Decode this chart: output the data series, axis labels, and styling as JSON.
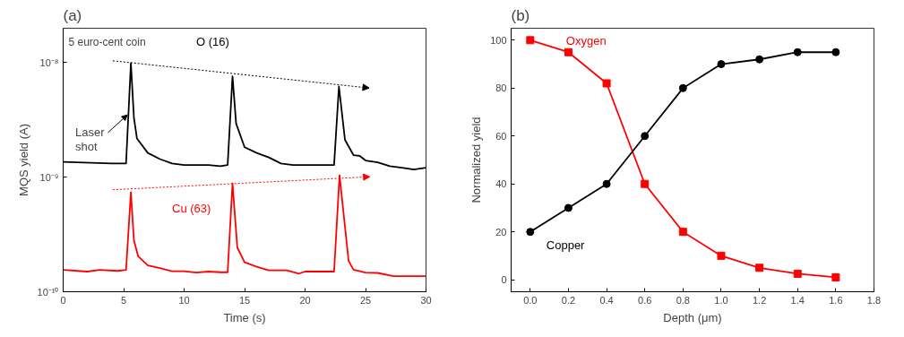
{
  "chart_data": [
    {
      "type": "line",
      "title": "(a)",
      "xlabel": "Time (s)",
      "ylabel": "MQS yield (A)",
      "log": "y",
      "xlim": [
        0,
        30
      ],
      "ylim": [
        1e-10,
        2e-08
      ],
      "xticks": [
        0,
        5,
        10,
        15,
        20,
        25,
        30
      ],
      "yticks": [
        {
          "value": 1e-10,
          "label": "10⁻¹⁰"
        },
        {
          "value": 1e-09,
          "label": "10⁻⁹"
        },
        {
          "value": 1e-08,
          "label": "10⁻⁸"
        }
      ],
      "grid": false,
      "marker": "none",
      "line_style": "solid",
      "annotations": [
        "5 euro-cent coin",
        {
          "text": "Laser shot",
          "x": 5.3,
          "y": 3.5e-09
        }
      ],
      "series": [
        {
          "name": "O (16)",
          "color": "#000000",
          "x": [
            0,
            4,
            5.2,
            5.6,
            5.85,
            6.1,
            7,
            8,
            9,
            10,
            12,
            13,
            13.6,
            14.0,
            14.3,
            15,
            16,
            17,
            18,
            19,
            21,
            22.4,
            22.8,
            23.3,
            24,
            24.5,
            25,
            26,
            27,
            28,
            29,
            30
          ],
          "values": [
            1.36e-09,
            1.32e-09,
            1.32e-09,
            9.9e-09,
            3.3e-09,
            2.18e-09,
            1.63e-09,
            1.44e-09,
            1.32e-09,
            1.28e-09,
            1.28e-09,
            1.25e-09,
            1.28e-09,
            7.6e-09,
            2.94e-09,
            1.83e-09,
            1.63e-09,
            1.49e-09,
            1.32e-09,
            1.28e-09,
            1.28e-09,
            1.28e-09,
            6.2e-09,
            2.12e-09,
            1.56e-09,
            1.54e-09,
            1.4e-09,
            1.35e-09,
            1.25e-09,
            1.21e-09,
            1.17e-09,
            1.21e-09
          ]
        },
        {
          "name": "Cu (63)",
          "color": "#ff0000",
          "x": [
            0,
            2,
            3,
            4.5,
            5.2,
            5.6,
            5.85,
            6.2,
            7,
            8,
            9,
            10,
            11,
            12,
            13,
            13.6,
            14.0,
            14.4,
            15,
            16,
            17,
            18.5,
            19.5,
            20,
            22.4,
            22.85,
            23.6,
            24,
            25,
            26,
            27.3,
            30
          ],
          "values": [
            1.55e-10,
            1.5e-10,
            1.55e-10,
            1.52e-10,
            1.55e-10,
            7.4e-10,
            2.82e-10,
            2.04e-10,
            1.7e-10,
            1.61e-10,
            1.51e-10,
            1.51e-10,
            1.47e-10,
            1.5e-10,
            1.48e-10,
            1.48e-10,
            8.85e-10,
            2.43e-10,
            1.81e-10,
            1.65e-10,
            1.54e-10,
            1.54e-10,
            1.44e-10,
            1.5e-10,
            1.5e-10,
            1.04e-09,
            1.86e-10,
            1.56e-10,
            1.47e-10,
            1.46e-10,
            1.37e-10,
            1.37e-10
          ]
        }
      ]
    },
    {
      "type": "line",
      "title": "(b)",
      "xlabel": "Depth (μm)",
      "ylabel": "Normalized yield",
      "xlim": [
        -0.1,
        1.8
      ],
      "ylim": [
        -5,
        105
      ],
      "xticks": [
        {
          "value": 0,
          "label": "0.0"
        },
        {
          "value": 0.2,
          "label": "0.2"
        },
        {
          "value": 0.4,
          "label": "0.4"
        },
        {
          "value": 0.6,
          "label": "0.6"
        },
        {
          "value": 0.8,
          "label": "0.8"
        },
        {
          "value": 1,
          "label": "1.0"
        },
        {
          "value": 1.2,
          "label": "1.2"
        },
        {
          "value": 1.4,
          "label": "1.4"
        },
        {
          "value": 1.6,
          "label": "1.6"
        },
        {
          "value": 1.8,
          "label": "1.8"
        }
      ],
      "yticks": [
        0,
        20,
        40,
        60,
        80,
        100
      ],
      "grid": false,
      "line_style": "solid",
      "x": [
        0,
        0.2,
        0.4,
        0.6,
        0.8,
        1.0,
        1.2,
        1.4,
        1.6
      ],
      "series": [
        {
          "name": "Oxygen",
          "color": "#ff0000",
          "marker": "square",
          "values": [
            100,
            95,
            82,
            40,
            20,
            10,
            5,
            2.5,
            1
          ]
        },
        {
          "name": "Copper",
          "color": "#000000",
          "marker": "circle",
          "values": [
            20,
            30,
            40,
            60,
            80,
            90,
            92,
            95,
            95
          ]
        }
      ]
    }
  ]
}
